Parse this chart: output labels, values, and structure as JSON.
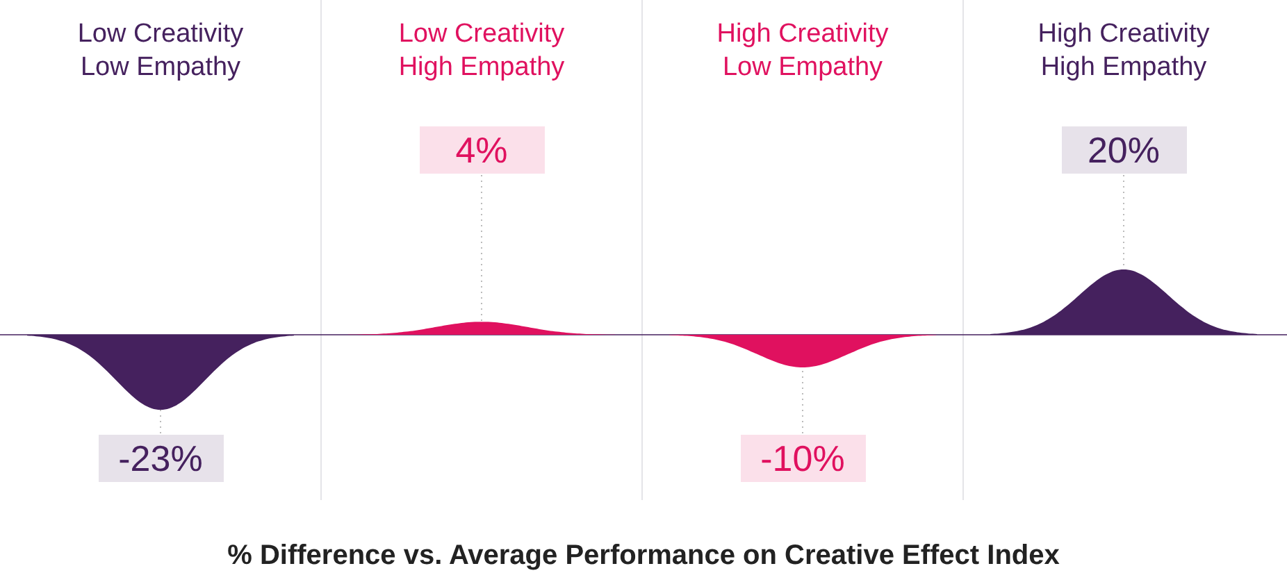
{
  "chart_data": {
    "type": "bar",
    "categories": [
      "Low Creativity\nLow Empathy",
      "Low Creativity\nHigh Empathy",
      "High Creativity\nLow Empathy",
      "High Creativity\nHigh Empathy"
    ],
    "values": [
      -23,
      4,
      -10,
      20
    ],
    "colors": [
      "#45215e",
      "#e0115f",
      "#e0115f",
      "#45215e"
    ],
    "value_labels": [
      "-23%",
      "4%",
      "-10%",
      "20%"
    ],
    "xlabel": "% Difference vs. Average Performance on Creative Effect Index"
  }
}
